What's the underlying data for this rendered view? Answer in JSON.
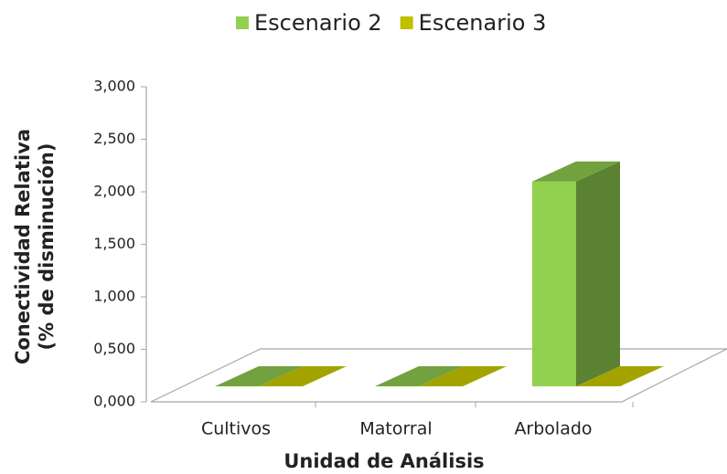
{
  "chart_data": {
    "type": "bar3d",
    "categories": [
      "Cultivos",
      "Matorral",
      "Arbolado"
    ],
    "series": [
      {
        "name": "Escenario 2",
        "color": "#92d050",
        "values": [
          0,
          0,
          1.95
        ]
      },
      {
        "name": "Escenario 3",
        "color": "#c0c000",
        "values": [
          0,
          0,
          0
        ]
      }
    ],
    "ylim": [
      0,
      3
    ],
    "yticks": [
      {
        "value": 0,
        "label": "0,000"
      },
      {
        "value": 0.5,
        "label": "0,500"
      },
      {
        "value": 1,
        "label": "1,000"
      },
      {
        "value": 1.5,
        "label": "1,500"
      },
      {
        "value": 2,
        "label": "2,000"
      },
      {
        "value": 2.5,
        "label": "2,500"
      },
      {
        "value": 3,
        "label": "3,000"
      }
    ],
    "y_label": [
      "Conectividad Relativa",
      "(% de disminución)"
    ],
    "x_label": "Unidad de Análisis",
    "grid": false,
    "legend": "top"
  }
}
